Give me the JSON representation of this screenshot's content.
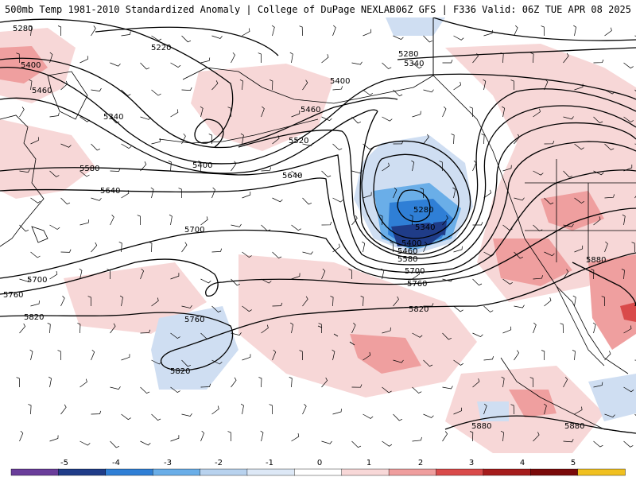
{
  "header": {
    "left": "500mb Temp 1981-2010 Standardized Anomaly | College of DuPage NEXLAB",
    "right": "06Z GFS | F336 Valid: 06Z TUE APR 08 2025"
  },
  "contours": {
    "labels": [
      "5220",
      "5280",
      "5280",
      "5280",
      "5340",
      "5340",
      "5340",
      "5400",
      "5400",
      "5400",
      "5400",
      "5460",
      "5460",
      "5460",
      "5520",
      "5580",
      "5580",
      "5640",
      "5640",
      "5700",
      "5700",
      "5700",
      "5760",
      "5760",
      "5760",
      "5820",
      "5820",
      "5820",
      "5880",
      "5880",
      "5880"
    ]
  },
  "colorbar": {
    "ticks": [
      "-5",
      "-4",
      "-3",
      "-2",
      "-1",
      "0",
      "1",
      "2",
      "3",
      "4",
      "5"
    ],
    "colors": [
      "#6a3d9a",
      "#1f3c88",
      "#2f7fd6",
      "#6aaee8",
      "#b8d2ee",
      "#dde8f6",
      "#ffffff",
      "#f8d8d8",
      "#ef9e9e",
      "#d94a4a",
      "#a51c1c",
      "#7a0a0a",
      "#f0c020"
    ]
  },
  "map_colors": {
    "ocean": "#ffffff",
    "land_outline": "#000000",
    "warm_light": "#f7d7d7",
    "warm_med": "#ef9f9f",
    "warm_strong": "#d94a4a",
    "cold_light": "#cfdef2",
    "cold_med": "#6aaee8",
    "cold_strong": "#2f7fd6",
    "cold_deep": "#1f3c88"
  }
}
